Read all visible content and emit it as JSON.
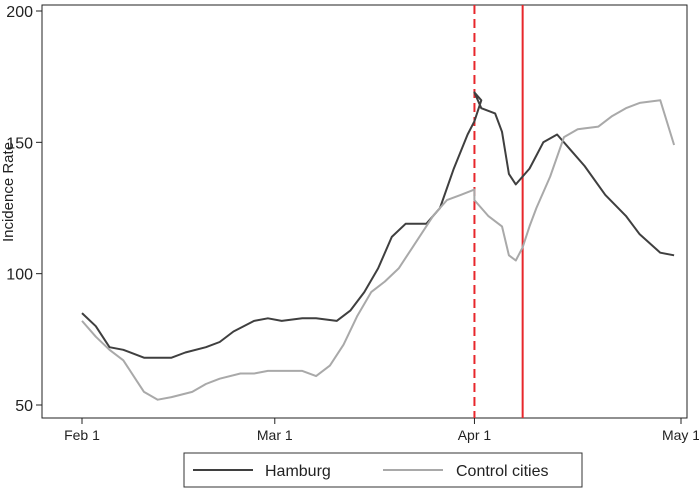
{
  "chart_data": {
    "type": "line",
    "title": "",
    "xlabel": "",
    "ylabel": "Incidence Rate",
    "x_ticks": [
      "Feb 1",
      "Mar 1",
      "Apr 1",
      "May 1"
    ],
    "y_ticks": [
      50,
      100,
      150,
      200
    ],
    "ylim": [
      50,
      200
    ],
    "xlim": [
      "Feb 1",
      "May 1"
    ],
    "grid": false,
    "legend_position": "bottom",
    "vertical_lines": [
      {
        "x": "Apr 1",
        "style": "dashed",
        "color": "#e8262b"
      },
      {
        "x": "Apr 8",
        "style": "solid",
        "color": "#e8262b"
      }
    ],
    "series": [
      {
        "name": "Hamburg",
        "color": "#3f3f3f",
        "x": [
          "Feb 1",
          "Feb 3",
          "Feb 5",
          "Feb 7",
          "Feb 10",
          "Feb 12",
          "Feb 14",
          "Feb 16",
          "Feb 19",
          "Feb 21",
          "Feb 23",
          "Feb 26",
          "Feb 28",
          "Mar 2",
          "Mar 5",
          "Mar 7",
          "Mar 10",
          "Mar 12",
          "Mar 14",
          "Mar 16",
          "Mar 18",
          "Mar 20",
          "Mar 23",
          "Mar 25",
          "Mar 27",
          "Mar 29",
          "Mar 30",
          "Mar 31",
          "Apr 1",
          "Apr 2",
          "Apr 4",
          "Apr 5",
          "Apr 6",
          "Apr 7",
          "Apr 9",
          "Apr 10",
          "Apr 11",
          "Apr 13",
          "Apr 15",
          "Apr 17",
          "Apr 20",
          "Apr 23",
          "Apr 25",
          "Apr 28",
          "Apr 30"
        ],
        "y": [
          85,
          80,
          72,
          71,
          68,
          68,
          68,
          70,
          72,
          74,
          78,
          82,
          83,
          82,
          83,
          83,
          82,
          86,
          93,
          102,
          114,
          119,
          119,
          125,
          140,
          153,
          158,
          166,
          169,
          163,
          161,
          154,
          138,
          134,
          140,
          145,
          150,
          153,
          147,
          141,
          130,
          122,
          115,
          108,
          107
        ]
      },
      {
        "name": "Control cities",
        "color": "#a9a9a9",
        "x": [
          "Feb 1",
          "Feb 3",
          "Feb 5",
          "Feb 7",
          "Feb 9",
          "Feb 10",
          "Feb 12",
          "Feb 14",
          "Feb 17",
          "Feb 19",
          "Feb 21",
          "Feb 24",
          "Feb 26",
          "Feb 28",
          "Mar 2",
          "Mar 5",
          "Mar 7",
          "Mar 9",
          "Mar 11",
          "Mar 13",
          "Mar 15",
          "Mar 17",
          "Mar 19",
          "Mar 21",
          "Mar 24",
          "Mar 26",
          "Mar 28",
          "Mar 30",
          "Apr 1",
          "Apr 3",
          "Apr 5",
          "Apr 6",
          "Apr 7",
          "Apr 8",
          "Apr 9",
          "Apr 10",
          "Apr 12",
          "Apr 14",
          "Apr 16",
          "Apr 19",
          "Apr 21",
          "Apr 23",
          "Apr 25",
          "Apr 28",
          "Apr 30"
        ],
        "y": [
          82,
          76,
          71,
          67,
          59,
          55,
          52,
          53,
          55,
          58,
          60,
          62,
          62,
          63,
          63,
          63,
          61,
          65,
          73,
          84,
          93,
          97,
          102,
          110,
          122,
          128,
          130,
          132,
          128,
          122,
          118,
          107,
          105,
          110,
          118,
          125,
          137,
          152,
          155,
          156,
          160,
          163,
          165,
          166,
          149
        ]
      }
    ]
  }
}
